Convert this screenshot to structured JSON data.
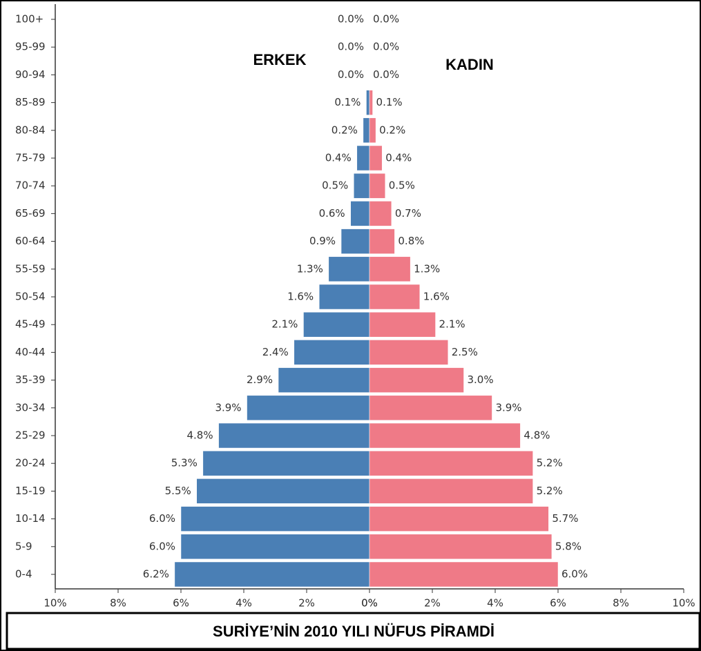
{
  "chart_data": {
    "type": "pyramid",
    "title": "SURİYE’NİN 2010 YILI NÜFUS PİRAMDİ",
    "categories": [
      "100+",
      "95-99",
      "90-94",
      "85-89",
      "80-84",
      "75-79",
      "70-74",
      "65-69",
      "60-64",
      "55-59",
      "50-54",
      "45-49",
      "40-44",
      "35-39",
      "30-34",
      "25-29",
      "20-24",
      "15-19",
      "10-14",
      "5-9",
      "0-4"
    ],
    "series": [
      {
        "name": "ERKEK",
        "color": "#4a7fb5",
        "side": "left",
        "values": [
          0.0,
          0.0,
          0.0,
          0.1,
          0.2,
          0.4,
          0.5,
          0.6,
          0.9,
          1.3,
          1.6,
          2.1,
          2.4,
          2.9,
          3.9,
          4.8,
          5.3,
          5.5,
          6.0,
          6.0,
          6.2
        ],
        "value_labels": [
          "0.0%",
          "0.0%",
          "0.0%",
          "0.1%",
          "0.2%",
          "0.4%",
          "0.5%",
          "0.6%",
          "0.9%",
          "1.3%",
          "1.6%",
          "2.1%",
          "2.4%",
          "2.9%",
          "3.9%",
          "4.8%",
          "5.3%",
          "5.5%",
          "6.0%",
          "6.0%",
          "6.2%"
        ]
      },
      {
        "name": "KADIN",
        "color": "#ef7a87",
        "side": "right",
        "values": [
          0.0,
          0.0,
          0.0,
          0.1,
          0.2,
          0.4,
          0.5,
          0.7,
          0.8,
          1.3,
          1.6,
          2.1,
          2.5,
          3.0,
          3.9,
          4.8,
          5.2,
          5.2,
          5.7,
          5.8,
          6.0
        ],
        "value_labels": [
          "0.0%",
          "0.0%",
          "0.0%",
          "0.1%",
          "0.2%",
          "0.4%",
          "0.5%",
          "0.7%",
          "0.8%",
          "1.3%",
          "1.6%",
          "2.1%",
          "2.5%",
          "3.0%",
          "3.9%",
          "4.8%",
          "5.2%",
          "5.2%",
          "5.7%",
          "5.8%",
          "6.0%"
        ]
      }
    ],
    "xlim": [
      0,
      10
    ],
    "xticks": [
      {
        "value": 0,
        "label": "0%"
      },
      {
        "value": 2,
        "label": "2%"
      },
      {
        "value": 4,
        "label": "4%"
      },
      {
        "value": 6,
        "label": "6%"
      },
      {
        "value": 8,
        "label": "8%"
      },
      {
        "value": 10,
        "label": "10%"
      }
    ]
  }
}
